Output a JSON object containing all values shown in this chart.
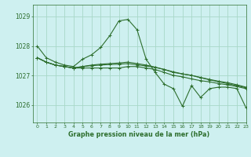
{
  "title": "Graphe pression niveau de la mer (hPa)",
  "background_color": "#cef0f0",
  "grid_color": "#a8d8c8",
  "line_color": "#2d6e2d",
  "xlim": [
    -0.5,
    23
  ],
  "ylim": [
    1025.4,
    1029.4
  ],
  "yticks": [
    1026,
    1027,
    1028,
    1029
  ],
  "xticks": [
    0,
    1,
    2,
    3,
    4,
    5,
    6,
    7,
    8,
    9,
    10,
    11,
    12,
    13,
    14,
    15,
    16,
    17,
    18,
    19,
    20,
    21,
    22,
    23
  ],
  "series": [
    [
      1028.0,
      1027.6,
      1027.45,
      1027.35,
      1027.3,
      1027.55,
      1027.7,
      1027.95,
      1028.35,
      1028.85,
      1028.9,
      1028.55,
      1027.55,
      1027.1,
      1026.7,
      1026.55,
      1025.95,
      1026.65,
      1026.25,
      1026.55,
      1026.6,
      1026.6,
      1026.55,
      1025.9
    ],
    [
      1027.6,
      1027.45,
      1027.35,
      1027.3,
      1027.25,
      1027.25,
      1027.25,
      1027.25,
      1027.25,
      1027.25,
      1027.3,
      1027.3,
      1027.25,
      1027.2,
      1027.1,
      1027.0,
      1026.95,
      1026.88,
      1026.82,
      1026.78,
      1026.72,
      1026.68,
      1026.62,
      1026.55
    ],
    [
      1027.6,
      1027.45,
      1027.35,
      1027.3,
      1027.25,
      1027.3,
      1027.35,
      1027.38,
      1027.4,
      1027.42,
      1027.45,
      1027.4,
      1027.35,
      1027.28,
      1027.2,
      1027.1,
      1027.05,
      1027.0,
      1026.92,
      1026.85,
      1026.78,
      1026.72,
      1026.65,
      1026.58
    ],
    [
      1027.6,
      1027.45,
      1027.35,
      1027.3,
      1027.25,
      1027.3,
      1027.33,
      1027.35,
      1027.37,
      1027.38,
      1027.4,
      1027.36,
      1027.32,
      1027.27,
      1027.2,
      1027.12,
      1027.05,
      1027.0,
      1026.93,
      1026.86,
      1026.8,
      1026.75,
      1026.68,
      1026.6
    ]
  ]
}
